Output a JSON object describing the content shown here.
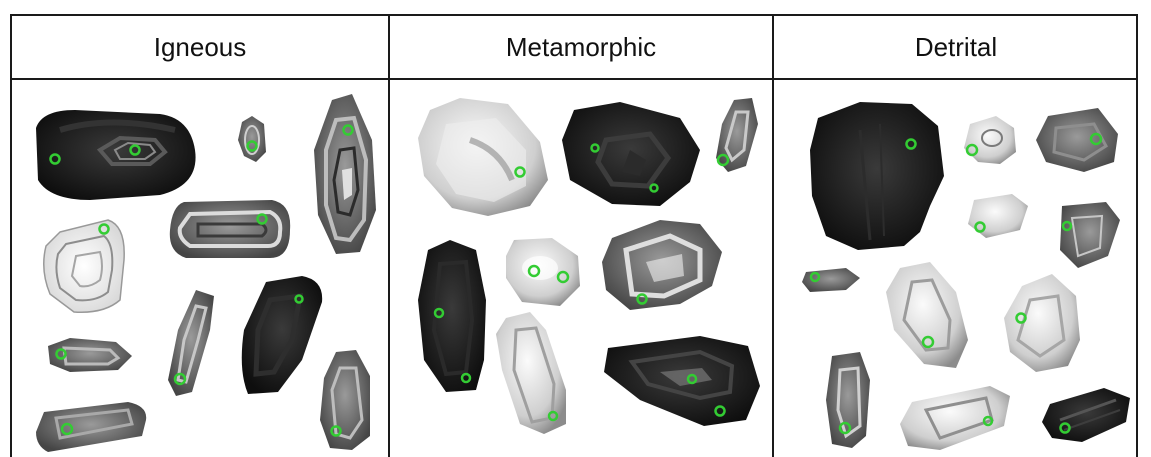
{
  "panels": [
    {
      "key": "igneous",
      "title": "Igneous"
    },
    {
      "key": "metamorphic",
      "title": "Metamorphic"
    },
    {
      "key": "detrital",
      "title": "Detrital"
    }
  ],
  "colors": {
    "border": "#1a1a1a",
    "marker": "#33cc33",
    "grain_dark": "#161616",
    "grain_mid": "#6f6f6f",
    "grain_light": "#e2e2e2"
  },
  "grain_count": {
    "igneous": 10,
    "metamorphic": 8,
    "detrital": 12
  }
}
